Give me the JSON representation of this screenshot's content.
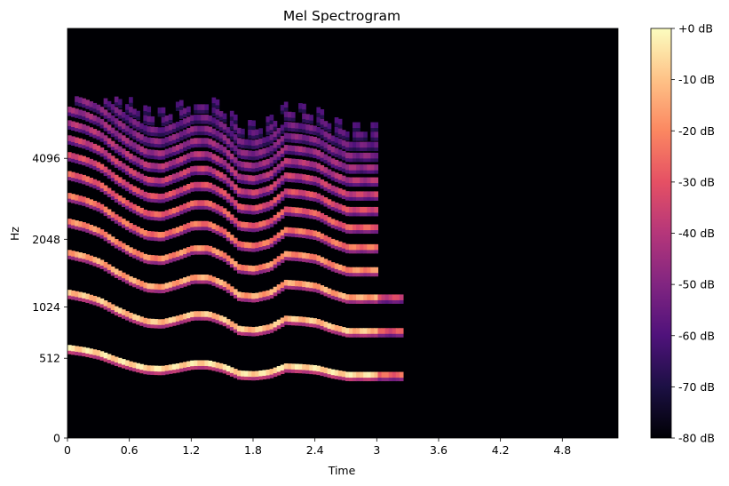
{
  "chart_data": {
    "type": "heatmap",
    "title": "Mel Spectrogram",
    "xlabel": "Time",
    "ylabel": "Hz",
    "x_ticks": [
      "0",
      "0.6",
      "1.2",
      "1.8",
      "2.4",
      "3",
      "3.6",
      "4.2",
      "4.8"
    ],
    "x_tick_values": [
      0,
      0.6,
      1.2,
      1.8,
      2.4,
      3.0,
      3.6,
      4.2,
      4.8
    ],
    "xlim": [
      0,
      5.34
    ],
    "y_ticks": [
      "0",
      "512",
      "1024",
      "2048",
      "4096"
    ],
    "y_scale": "mel",
    "colorbar": {
      "ticks": [
        "+0 dB",
        "-10 dB",
        "-20 dB",
        "-30 dB",
        "-40 dB",
        "-50 dB",
        "-60 dB",
        "-70 dB",
        "-80 dB"
      ],
      "tick_values": [
        0,
        -10,
        -20,
        -30,
        -40,
        -50,
        -60,
        -70,
        -80
      ],
      "range": [
        -80,
        0
      ],
      "colormap": "magma"
    },
    "harmonic_series": {
      "description_of_fundamental_hz": [
        [
          0.0,
          600
        ],
        [
          0.15,
          580
        ],
        [
          0.3,
          550
        ],
        [
          0.45,
          500
        ],
        [
          0.6,
          460
        ],
        [
          0.75,
          430
        ],
        [
          0.9,
          425
        ],
        [
          1.05,
          445
        ],
        [
          1.2,
          470
        ],
        [
          1.35,
          470
        ],
        [
          1.5,
          440
        ],
        [
          1.65,
          390
        ],
        [
          1.8,
          385
        ],
        [
          1.95,
          400
        ],
        [
          2.1,
          445
        ],
        [
          2.25,
          440
        ],
        [
          2.4,
          430
        ],
        [
          2.55,
          400
        ],
        [
          2.7,
          380
        ],
        [
          2.85,
          380
        ],
        [
          3.0,
          380
        ],
        [
          3.25,
          380
        ]
      ],
      "voiced_end_time": 3.0
    }
  }
}
